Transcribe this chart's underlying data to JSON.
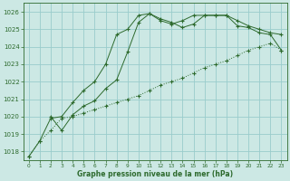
{
  "title": "Graphe pression niveau de la mer (hPa)",
  "bg_color": "#cce8e4",
  "grid_color": "#99cccc",
  "line_color": "#2d6a2d",
  "xlim": [
    -0.5,
    23.5
  ],
  "ylim": [
    1017.5,
    1026.5
  ],
  "yticks": [
    1018,
    1019,
    1020,
    1021,
    1022,
    1023,
    1024,
    1025,
    1026
  ],
  "xticks": [
    0,
    1,
    2,
    3,
    4,
    5,
    6,
    7,
    8,
    9,
    10,
    11,
    12,
    13,
    14,
    15,
    16,
    17,
    18,
    19,
    20,
    21,
    22,
    23
  ],
  "series1_x": [
    0,
    1,
    2,
    3,
    4,
    5,
    6,
    7,
    8,
    9,
    10,
    11,
    12,
    13,
    14,
    15,
    16,
    17,
    18,
    19,
    20,
    21,
    22,
    23
  ],
  "series1_y": [
    1017.7,
    1018.6,
    1019.2,
    1019.9,
    1020.0,
    1020.2,
    1020.4,
    1020.6,
    1020.8,
    1021.0,
    1021.2,
    1021.5,
    1021.8,
    1022.0,
    1022.2,
    1022.5,
    1022.8,
    1023.0,
    1023.2,
    1023.5,
    1023.8,
    1024.0,
    1024.2,
    1023.8
  ],
  "series2_x": [
    0,
    1,
    2,
    3,
    4,
    5,
    6,
    7,
    8,
    9,
    10,
    11,
    12,
    13,
    14,
    15,
    16,
    17,
    18,
    19,
    20,
    21,
    22,
    23
  ],
  "series2_y": [
    1017.7,
    1018.6,
    1019.9,
    1020.0,
    1020.8,
    1021.5,
    1022.0,
    1023.0,
    1024.7,
    1025.0,
    1025.8,
    1025.9,
    1025.6,
    1025.4,
    1025.1,
    1025.3,
    1025.8,
    1025.8,
    1025.8,
    1025.2,
    1025.1,
    1024.8,
    1024.7,
    1023.8
  ],
  "series3_x": [
    2,
    3,
    4,
    5,
    6,
    7,
    8,
    9,
    10,
    11,
    12,
    13,
    14,
    15,
    16,
    17,
    18,
    19,
    20,
    21,
    22,
    23
  ],
  "series3_y": [
    1020.0,
    1019.2,
    1020.1,
    1020.6,
    1020.9,
    1021.6,
    1022.1,
    1023.7,
    1025.4,
    1025.9,
    1025.5,
    1025.3,
    1025.5,
    1025.8,
    1025.8,
    1025.8,
    1025.8,
    1025.5,
    1025.2,
    1025.0,
    1024.8,
    1024.7
  ]
}
